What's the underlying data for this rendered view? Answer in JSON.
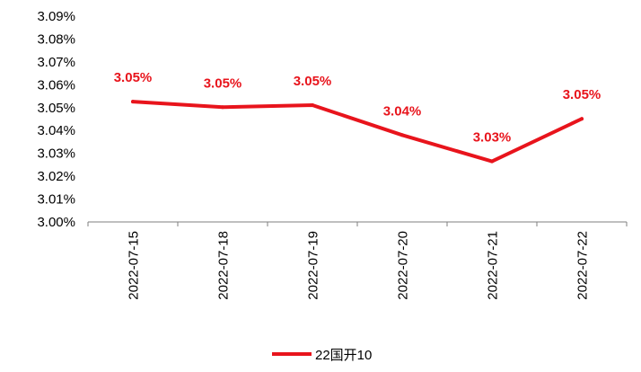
{
  "chart_data": {
    "type": "line",
    "title": "",
    "xlabel": "",
    "ylabel": "",
    "categories": [
      "2022-07-15",
      "2022-07-18",
      "2022-07-19",
      "2022-07-20",
      "2022-07-21",
      "2022-07-22"
    ],
    "series": [
      {
        "name": "22国开10",
        "values": [
          3.0526,
          3.0502,
          3.0511,
          3.038,
          3.0265,
          3.0451
        ],
        "data_labels": [
          "3.05%",
          "3.05%",
          "3.05%",
          "3.04%",
          "3.03%",
          "3.05%"
        ],
        "color": "#e8141c"
      }
    ],
    "ylim": [
      3.0,
      3.09
    ],
    "ytick_labels": [
      "3.00%",
      "3.01%",
      "3.02%",
      "3.03%",
      "3.04%",
      "3.05%",
      "3.06%",
      "3.07%",
      "3.08%",
      "3.09%"
    ],
    "grid": false,
    "legend_position": "bottom-center"
  }
}
